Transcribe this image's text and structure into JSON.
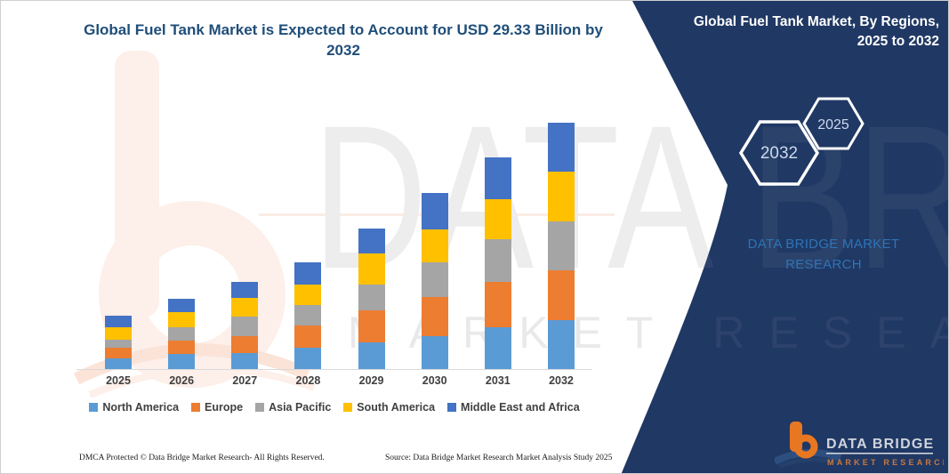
{
  "header": {
    "title_line1": "Global Fuel Tank Market is Expected to Account for USD 29.33 Billion by",
    "title_line2": "2032"
  },
  "side_panel": {
    "title_line1": "Global Fuel Tank Market, By Regions,",
    "title_line2": "2025 to 2032",
    "hexagon_back_label": "2032",
    "hexagon_front_label": "2025",
    "brand_text": "DATA BRIDGE MARKET RESEARCH",
    "panel_color": "#203864",
    "accent_blue": "#2E74B5",
    "logo": {
      "title": "DATA BRIDGE",
      "subtitle": "MARKET RESEARCH",
      "orange": "#E87722"
    }
  },
  "watermark": {
    "brand_big": "DATA BRIDGE",
    "brand_spaced": "MARKET RESEARCH"
  },
  "chart_data": {
    "type": "bar",
    "stacked": true,
    "title": "Global Fuel Tank Market is Expected to Account for USD 29.33 Billion by 2032",
    "unit": "USD Billion",
    "categories": [
      "2025",
      "2026",
      "2027",
      "2028",
      "2029",
      "2030",
      "2031",
      "2032"
    ],
    "series": [
      {
        "name": "North America",
        "color": "#5B9BD5",
        "values": [
          1.3,
          1.8,
          1.91,
          2.54,
          3.18,
          3.92,
          4.98,
          5.83
        ]
      },
      {
        "name": "Europe",
        "color": "#ED7D31",
        "values": [
          1.24,
          1.59,
          2.01,
          2.65,
          3.81,
          4.66,
          5.4,
          5.93
        ]
      },
      {
        "name": "Asia Pacific",
        "color": "#A5A5A5",
        "values": [
          0.98,
          1.59,
          2.33,
          2.44,
          3.07,
          4.13,
          5.08,
          5.82
        ]
      },
      {
        "name": "South America",
        "color": "#FFC000",
        "values": [
          1.42,
          1.8,
          2.22,
          2.44,
          3.71,
          3.92,
          4.77,
          5.93
        ]
      },
      {
        "name": "Middle East and Africa",
        "color": "#4472C4",
        "values": [
          1.41,
          1.59,
          1.91,
          2.65,
          2.97,
          4.34,
          4.98,
          5.82
        ]
      }
    ],
    "totals": [
      6.35,
      8.37,
      10.38,
      12.72,
      16.74,
      20.97,
      25.21,
      29.33
    ],
    "ylim": [
      0,
      29.33
    ],
    "grid": false,
    "axis_labels_visible": false,
    "legend_position": "bottom"
  },
  "footer": {
    "left": "DMCA Protected © Data Bridge Market Research-  All Rights Reserved.",
    "right": "Source: Data Bridge Market Research  Market Analysis Study 2025"
  }
}
